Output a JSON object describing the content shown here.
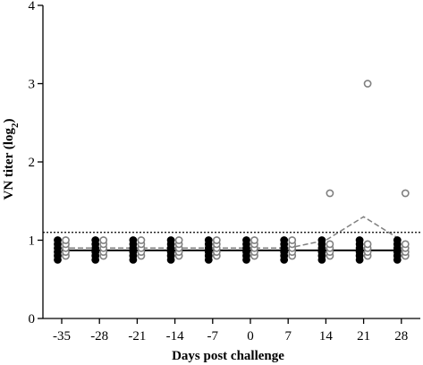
{
  "chart_data": {
    "type": "scatter",
    "xlabel": "Days post challenge",
    "ylabel_main": "VN titer (log",
    "ylabel_sub": "2",
    "ylabel_close": ")",
    "ylim": [
      0,
      4
    ],
    "y_ticks": [
      0,
      1,
      2,
      3,
      4
    ],
    "x_ticks": [
      -35,
      -28,
      -21,
      -14,
      -7,
      0,
      7,
      14,
      21,
      28
    ],
    "threshold": 1.1,
    "colors": {
      "filled": "#000000",
      "open": "#808080",
      "threshold": "#000000"
    },
    "series": [
      {
        "style": "filled-circles-solid-line",
        "x": [
          -35,
          -28,
          -21,
          -14,
          -7,
          0,
          7,
          14,
          21,
          28
        ],
        "mean": [
          0.87,
          0.87,
          0.87,
          0.87,
          0.87,
          0.87,
          0.87,
          0.87,
          0.87,
          0.87
        ],
        "points": [
          [
            0.75,
            0.8,
            0.85,
            0.9,
            0.95,
            1.0
          ],
          [
            0.75,
            0.8,
            0.85,
            0.9,
            0.95,
            1.0
          ],
          [
            0.75,
            0.8,
            0.85,
            0.9,
            0.95,
            1.0
          ],
          [
            0.75,
            0.8,
            0.85,
            0.9,
            0.95,
            1.0
          ],
          [
            0.75,
            0.8,
            0.85,
            0.9,
            0.95,
            1.0
          ],
          [
            0.75,
            0.8,
            0.85,
            0.9,
            0.95,
            1.0
          ],
          [
            0.75,
            0.8,
            0.85,
            0.9,
            0.95,
            1.0
          ],
          [
            0.75,
            0.8,
            0.85,
            0.9,
            0.95,
            1.0
          ],
          [
            0.75,
            0.8,
            0.85,
            0.9,
            0.95,
            1.0
          ],
          [
            0.75,
            0.8,
            0.85,
            0.9,
            0.95,
            1.0
          ]
        ]
      },
      {
        "style": "open-circles-dashed-line",
        "x": [
          -35,
          -28,
          -21,
          -14,
          -7,
          0,
          7,
          14,
          21,
          28
        ],
        "mean": [
          0.9,
          0.9,
          0.9,
          0.9,
          0.9,
          0.9,
          0.9,
          1.0,
          1.3,
          1.0
        ],
        "points": [
          [
            0.8,
            0.85,
            0.9,
            0.95,
            1.0
          ],
          [
            0.8,
            0.85,
            0.9,
            0.95,
            1.0
          ],
          [
            0.8,
            0.85,
            0.9,
            0.95,
            1.0
          ],
          [
            0.8,
            0.85,
            0.9,
            0.95,
            1.0
          ],
          [
            0.8,
            0.85,
            0.9,
            0.95,
            1.0
          ],
          [
            0.8,
            0.85,
            0.9,
            0.95,
            1.0
          ],
          [
            0.8,
            0.85,
            0.9,
            0.95,
            1.0
          ],
          [
            0.8,
            0.85,
            0.9,
            0.95,
            1.6
          ],
          [
            0.8,
            0.85,
            0.9,
            0.95,
            3.0
          ],
          [
            0.8,
            0.85,
            0.9,
            0.95,
            1.6
          ]
        ]
      }
    ]
  }
}
